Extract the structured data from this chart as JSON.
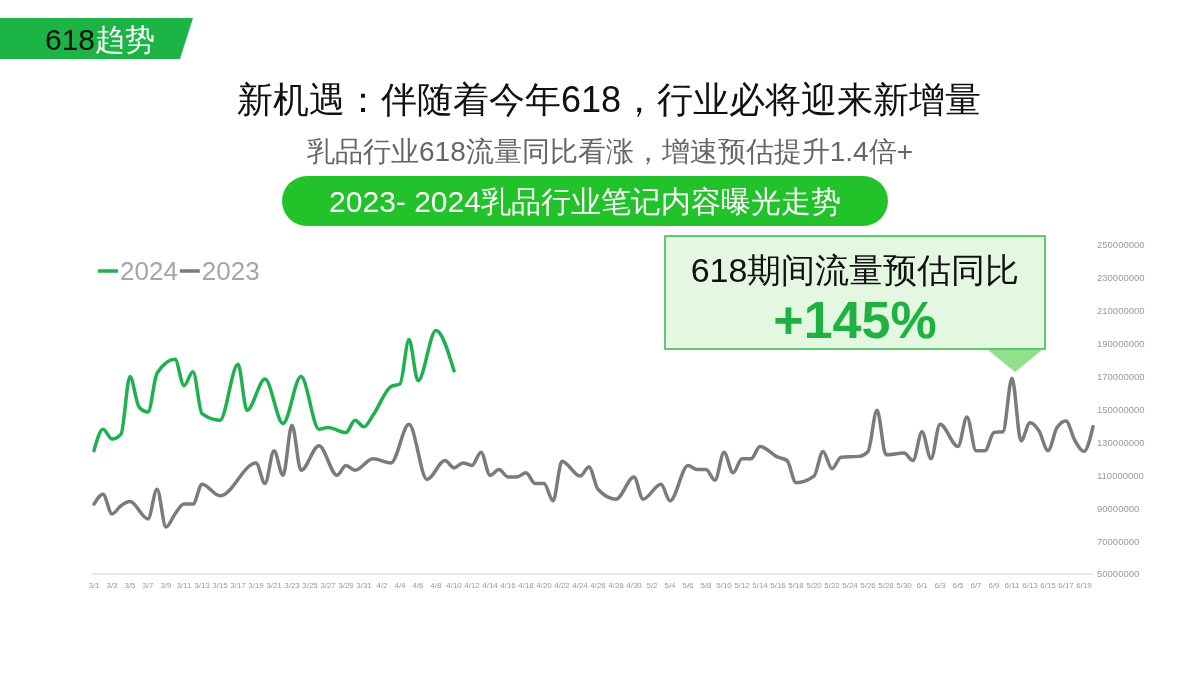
{
  "chart_data": {
    "type": "line",
    "title": "新机遇：伴随着今年618，行业必将迎来新增量",
    "subtitle": "乳品行业618流量同比看涨，增速预估提升1.4倍+",
    "annotations": [
      "618趋势",
      "2023- 2024乳品行业笔记内容曝光走势",
      "618期间流量预估同比",
      "+145%"
    ],
    "legend": "top left",
    "xlim": [
      "--03-01",
      "--06-20"
    ],
    "xticks": [
      {
        "value": "--03-01",
        "label": "3/1"
      },
      {
        "value": "--03-03",
        "label": "3/3"
      },
      {
        "value": "--03-05",
        "label": "3/5"
      },
      {
        "value": "--03-07",
        "label": "3/7"
      },
      {
        "value": "--03-09",
        "label": "3/9"
      },
      {
        "value": "--03-11",
        "label": "3/11"
      },
      {
        "value": "--03-13",
        "label": "3/13"
      },
      {
        "value": "--03-15",
        "label": "3/15"
      },
      {
        "value": "--03-17",
        "label": "3/17"
      },
      {
        "value": "--03-19",
        "label": "3/19"
      },
      {
        "value": "--03-21",
        "label": "3/21"
      },
      {
        "value": "--03-23",
        "label": "3/23"
      },
      {
        "value": "--03-25",
        "label": "3/25"
      },
      {
        "value": "--03-27",
        "label": "3/27"
      },
      {
        "value": "--03-29",
        "label": "3/29"
      },
      {
        "value": "--03-31",
        "label": "3/31"
      },
      {
        "value": "--04-02",
        "label": "4/2"
      },
      {
        "value": "--04-04",
        "label": "4/4"
      },
      {
        "value": "--04-06",
        "label": "4/6"
      },
      {
        "value": "--04-08",
        "label": "4/8"
      },
      {
        "value": "--04-10",
        "label": "4/10"
      },
      {
        "value": "--04-12",
        "label": "4/12"
      },
      {
        "value": "--04-14",
        "label": "4/14"
      },
      {
        "value": "--04-16",
        "label": "4/16"
      },
      {
        "value": "--04-18",
        "label": "4/18"
      },
      {
        "value": "--04-20",
        "label": "4/20"
      },
      {
        "value": "--04-22",
        "label": "4/22"
      },
      {
        "value": "--04-24",
        "label": "4/24"
      },
      {
        "value": "--04-26",
        "label": "4/26"
      },
      {
        "value": "--04-28",
        "label": "4/28"
      },
      {
        "value": "--04-30",
        "label": "4/30"
      },
      {
        "value": "--05-02",
        "label": "5/2"
      },
      {
        "value": "--05-04",
        "label": "5/4"
      },
      {
        "value": "--05-06",
        "label": "5/6"
      },
      {
        "value": "--05-08",
        "label": "5/8"
      },
      {
        "value": "--05-10",
        "label": "5/10"
      },
      {
        "value": "--05-12",
        "label": "5/12"
      },
      {
        "value": "--05-14",
        "label": "5/14"
      },
      {
        "value": "--05-16",
        "label": "5/16"
      },
      {
        "value": "--05-18",
        "label": "5/18"
      },
      {
        "value": "--05-20",
        "label": "5/20"
      },
      {
        "value": "--05-22",
        "label": "5/22"
      },
      {
        "value": "--05-24",
        "label": "5/24"
      },
      {
        "value": "--05-26",
        "label": "5/26"
      },
      {
        "value": "--05-28",
        "label": "5/28"
      },
      {
        "value": "--05-30",
        "label": "5/30"
      },
      {
        "value": "--06-01",
        "label": "6/1"
      },
      {
        "value": "--06-03",
        "label": "6/3"
      },
      {
        "value": "--06-05",
        "label": "6/5"
      },
      {
        "value": "--06-07",
        "label": "6/7"
      },
      {
        "value": "--06-09",
        "label": "6/9"
      },
      {
        "value": "--06-11",
        "label": "6/11"
      },
      {
        "value": "--06-13",
        "label": "6/13"
      },
      {
        "value": "--06-15",
        "label": "6/15"
      },
      {
        "value": "--06-17",
        "label": "6/17"
      },
      {
        "value": "--06-19",
        "label": "6/19"
      }
    ],
    "ylim": [
      50000000,
      250000000
    ],
    "yticks": [
      50000000,
      70000000,
      90000000,
      110000000,
      130000000,
      150000000,
      170000000,
      190000000,
      210000000,
      230000000,
      250000000
    ],
    "series": [
      {
        "name": "2024",
        "color": "#1fb050",
        "x": [
          "--03-01",
          "--03-02",
          "--03-03",
          "--03-04",
          "--03-05",
          "--03-06",
          "--03-07",
          "--03-08",
          "--03-10",
          "--03-11",
          "--03-12",
          "--03-13",
          "--03-15",
          "--03-17",
          "--03-18",
          "--03-20",
          "--03-22",
          "--03-24",
          "--03-26",
          "--03-27",
          "--03-29",
          "--03-30",
          "--03-31",
          "--04-01",
          "--04-03",
          "--04-04",
          "--04-05",
          "--04-06",
          "--04-08",
          "--04-10"
        ],
        "values": [
          125000000,
          138000000,
          132000000,
          135000000,
          170000000,
          151500000,
          148500000,
          172000000,
          180500000,
          164500000,
          173000000,
          147500000,
          143500000,
          177500000,
          149500000,
          168500000,
          141500000,
          170000000,
          138000000,
          139000000,
          136000000,
          143500000,
          139500000,
          146500000,
          164000000,
          165500000,
          192500000,
          167500000,
          198000000,
          173500000
        ]
      },
      {
        "name": "2023",
        "color": "#7b7b7b",
        "x": [
          "--03-01",
          "--03-02",
          "--03-03",
          "--03-04",
          "--03-05",
          "--03-07",
          "--03-08",
          "--03-09",
          "--03-10",
          "--03-11",
          "--03-12",
          "--03-13",
          "--03-15",
          "--03-19",
          "--03-20",
          "--03-21",
          "--03-22",
          "--03-23",
          "--03-24",
          "--03-26",
          "--03-28",
          "--03-29",
          "--03-30",
          "--04-01",
          "--04-03",
          "--04-05",
          "--04-07",
          "--04-09",
          "--04-10",
          "--04-11",
          "--04-12",
          "--04-13",
          "--04-14",
          "--04-15",
          "--04-16",
          "--04-17",
          "--04-18",
          "--04-19",
          "--04-20",
          "--04-21",
          "--04-22",
          "--04-24",
          "--04-25",
          "--04-26",
          "--04-28",
          "--04-30",
          "--05-01",
          "--05-03",
          "--05-04",
          "--05-06",
          "--05-07",
          "--05-08",
          "--05-09",
          "--05-10",
          "--05-11",
          "--05-12",
          "--05-13",
          "--05-14",
          "--05-16",
          "--05-17",
          "--05-18",
          "--05-20",
          "--05-21",
          "--05-22",
          "--05-23",
          "--05-25",
          "--05-26",
          "--05-27",
          "--05-28",
          "--05-30",
          "--05-31",
          "--06-01",
          "--06-02",
          "--06-03",
          "--06-05",
          "--06-06",
          "--06-07",
          "--06-08",
          "--06-09",
          "--06-10",
          "--06-11",
          "--06-12",
          "--06-13",
          "--06-14",
          "--06-15",
          "--06-16",
          "--06-17",
          "--06-18",
          "--06-19",
          "--06-20"
        ],
        "values": [
          92500000,
          98500000,
          86500000,
          91500000,
          94000000,
          83500000,
          101500000,
          78500000,
          86500000,
          92500000,
          92500000,
          104500000,
          97500000,
          117500000,
          105000000,
          125000000,
          110000000,
          140500000,
          113000000,
          128000000,
          110000000,
          116000000,
          113000000,
          120000000,
          117500000,
          141000000,
          107500000,
          119000000,
          114500000,
          117500000,
          116000000,
          124000000,
          110000000,
          113500000,
          109000000,
          109000000,
          111500000,
          105000000,
          105000000,
          94500000,
          118500000,
          109500000,
          115000000,
          101500000,
          95500000,
          109000000,
          95500000,
          104500000,
          94500000,
          116000000,
          113500000,
          113500000,
          107000000,
          124000000,
          111500000,
          120000000,
          120000000,
          127500000,
          121000000,
          119000000,
          105500000,
          109500000,
          124500000,
          114000000,
          121000000,
          121500000,
          124500000,
          149500000,
          122500000,
          123500000,
          119000000,
          136500000,
          120000000,
          141000000,
          127500000,
          145500000,
          125000000,
          125000000,
          136000000,
          136500000,
          169000000,
          131000000,
          142000000,
          137000000,
          125000000,
          139000000,
          143000000,
          131000000,
          124500000,
          139500000
        ]
      }
    ]
  }
}
